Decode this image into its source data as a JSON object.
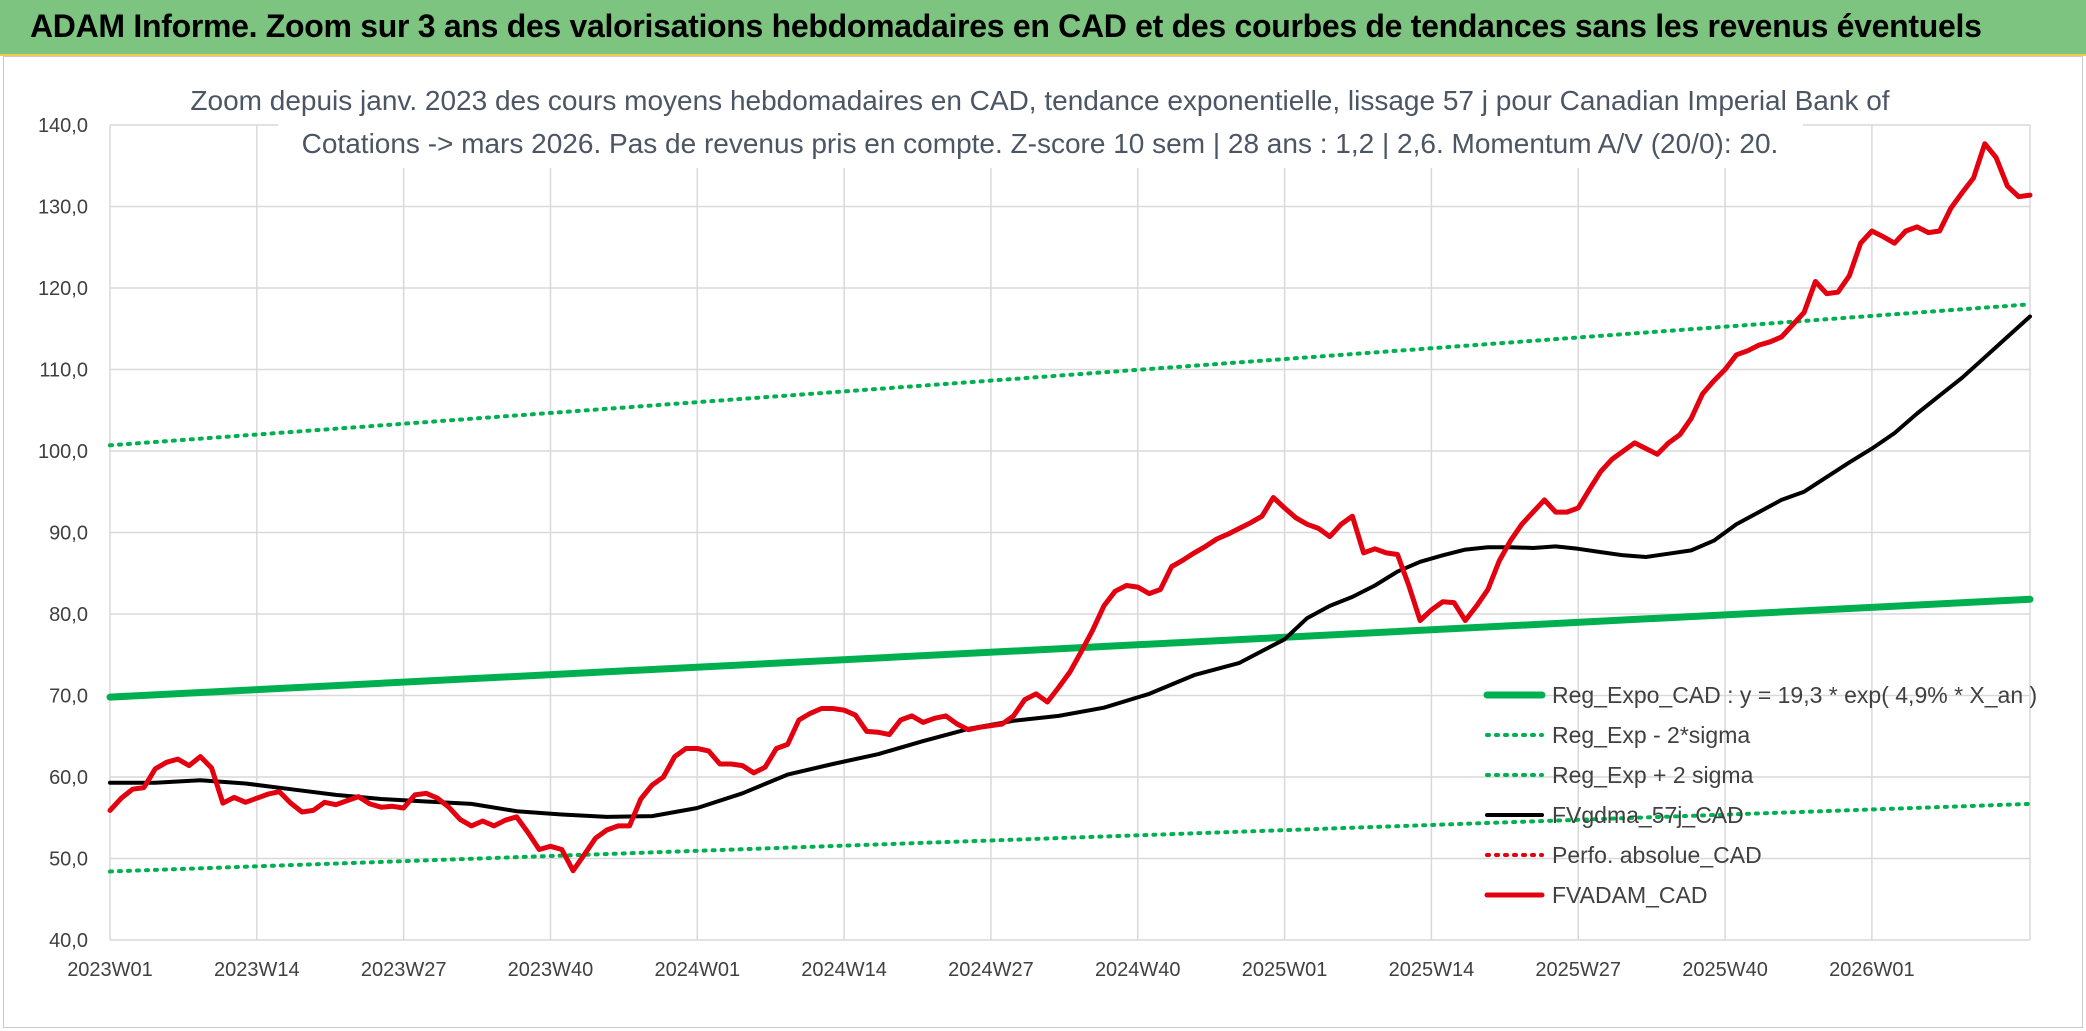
{
  "header": {
    "title": "ADAM Informe. Zoom sur 3 ans des valorisations hebdomadaires en CAD et des courbes de tendances sans les revenus éventuels"
  },
  "colors": {
    "header_bg": "#7cc47f",
    "trend": "#00b050",
    "smooth": "#000000",
    "price": "#e3000f",
    "perf": "#e3000f"
  },
  "chart_data": {
    "type": "line",
    "title_line1": "Zoom depuis janv. 2023 des cours moyens hebdomadaires en CAD, tendance exponentielle, lissage 57 j pour Canadian Imperial Bank of",
    "title_line2": "Cotations -> mars 2026. Pas de revenus pris en compte. Z-score 10 sem | 28 ans : 1,2 | 2,6. Momentum A/V (20/0): 20.",
    "ylim": [
      40,
      140
    ],
    "y_ticks": [
      "40,0",
      "50,0",
      "60,0",
      "70,0",
      "80,0",
      "90,0",
      "100,0",
      "110,0",
      "120,0",
      "130,0",
      "140,0"
    ],
    "x_ticks": [
      {
        "label": "2023W01",
        "week": 0
      },
      {
        "label": "2023W14",
        "week": 13
      },
      {
        "label": "2023W27",
        "week": 26
      },
      {
        "label": "2023W40",
        "week": 39
      },
      {
        "label": "2024W01",
        "week": 52
      },
      {
        "label": "2024W14",
        "week": 65
      },
      {
        "label": "2024W27",
        "week": 78
      },
      {
        "label": "2024W40",
        "week": 91
      },
      {
        "label": "2025W01",
        "week": 104
      },
      {
        "label": "2025W14",
        "week": 117
      },
      {
        "label": "2025W27",
        "week": 130
      },
      {
        "label": "2025W40",
        "week": 143
      },
      {
        "label": "2026W01",
        "week": 156
      }
    ],
    "grid": true,
    "legend_position": "bottom-right",
    "series": [
      {
        "name": "Reg_Expo_CAD : y = 19,3 * exp( 4,9% *  X_an )",
        "style": "solid-thick",
        "color": "#00b050",
        "points": [
          [
            0,
            69.8
          ],
          [
            170,
            81.8
          ]
        ]
      },
      {
        "name": "Reg_Exp - 2*sigma",
        "style": "dotted",
        "color": "#00b050",
        "points": [
          [
            0,
            48.4
          ],
          [
            170,
            56.7
          ]
        ]
      },
      {
        "name": "Reg_Exp + 2 sigma",
        "style": "dotted",
        "color": "#00b050",
        "points": [
          [
            0,
            100.7
          ],
          [
            170,
            118.0
          ]
        ]
      },
      {
        "name": "FVgdma_57j_CAD",
        "style": "solid",
        "color": "#000000",
        "points": [
          [
            0,
            59.3
          ],
          [
            4,
            59.3
          ],
          [
            8,
            59.6
          ],
          [
            12,
            59.2
          ],
          [
            16,
            58.5
          ],
          [
            20,
            57.8
          ],
          [
            24,
            57.3
          ],
          [
            28,
            57.0
          ],
          [
            32,
            56.7
          ],
          [
            36,
            55.8
          ],
          [
            40,
            55.4
          ],
          [
            44,
            55.1
          ],
          [
            48,
            55.2
          ],
          [
            52,
            56.2
          ],
          [
            56,
            58.0
          ],
          [
            60,
            60.3
          ],
          [
            64,
            61.6
          ],
          [
            68,
            62.8
          ],
          [
            72,
            64.4
          ],
          [
            76,
            65.9
          ],
          [
            80,
            66.9
          ],
          [
            84,
            67.5
          ],
          [
            88,
            68.5
          ],
          [
            92,
            70.2
          ],
          [
            96,
            72.5
          ],
          [
            100,
            74.0
          ],
          [
            104,
            76.9
          ],
          [
            106,
            79.5
          ],
          [
            108,
            81.0
          ],
          [
            110,
            82.1
          ],
          [
            112,
            83.5
          ],
          [
            114,
            85.2
          ],
          [
            116,
            86.4
          ],
          [
            118,
            87.2
          ],
          [
            120,
            87.9
          ],
          [
            122,
            88.2
          ],
          [
            124,
            88.2
          ],
          [
            126,
            88.1
          ],
          [
            128,
            88.3
          ],
          [
            130,
            88.0
          ],
          [
            132,
            87.6
          ],
          [
            134,
            87.2
          ],
          [
            136,
            87.0
          ],
          [
            138,
            87.4
          ],
          [
            140,
            87.8
          ],
          [
            142,
            89.0
          ],
          [
            144,
            91.0
          ],
          [
            146,
            92.5
          ],
          [
            148,
            94.0
          ],
          [
            150,
            95.0
          ],
          [
            152,
            96.8
          ],
          [
            154,
            98.6
          ],
          [
            156,
            100.3
          ],
          [
            158,
            102.2
          ],
          [
            160,
            104.6
          ],
          [
            162,
            106.8
          ],
          [
            164,
            109.0
          ],
          [
            166,
            111.5
          ],
          [
            168,
            114.0
          ],
          [
            170,
            116.5
          ]
        ]
      },
      {
        "name": "Perfo. absolue_CAD",
        "style": "dotted",
        "color": "#e3000f",
        "points": []
      },
      {
        "name": "FVADAM_CAD",
        "style": "solid-thick",
        "color": "#e3000f",
        "points": [
          [
            0,
            55.9
          ],
          [
            1,
            57.4
          ],
          [
            2,
            58.5
          ],
          [
            3,
            58.7
          ],
          [
            4,
            61.0
          ],
          [
            5,
            61.8
          ],
          [
            6,
            62.2
          ],
          [
            7,
            61.4
          ],
          [
            8,
            62.5
          ],
          [
            9,
            61.1
          ],
          [
            10,
            56.8
          ],
          [
            11,
            57.5
          ],
          [
            12,
            56.9
          ],
          [
            13,
            57.4
          ],
          [
            14,
            57.9
          ],
          [
            15,
            58.2
          ],
          [
            16,
            56.8
          ],
          [
            17,
            55.7
          ],
          [
            18,
            55.9
          ],
          [
            19,
            56.9
          ],
          [
            20,
            56.6
          ],
          [
            21,
            57.1
          ],
          [
            22,
            57.6
          ],
          [
            23,
            56.7
          ],
          [
            24,
            56.3
          ],
          [
            25,
            56.4
          ],
          [
            26,
            56.2
          ],
          [
            27,
            57.8
          ],
          [
            28,
            58.0
          ],
          [
            29,
            57.4
          ],
          [
            30,
            56.3
          ],
          [
            31,
            54.8
          ],
          [
            32,
            54.0
          ],
          [
            33,
            54.6
          ],
          [
            34,
            54.0
          ],
          [
            35,
            54.7
          ],
          [
            36,
            55.1
          ],
          [
            37,
            53.2
          ],
          [
            38,
            51.1
          ],
          [
            39,
            51.5
          ],
          [
            40,
            51.1
          ],
          [
            41,
            48.5
          ],
          [
            42,
            50.5
          ],
          [
            43,
            52.5
          ],
          [
            44,
            53.5
          ],
          [
            45,
            54.0
          ],
          [
            46,
            54.0
          ],
          [
            47,
            57.3
          ],
          [
            48,
            59.0
          ],
          [
            49,
            60.0
          ],
          [
            50,
            62.5
          ],
          [
            51,
            63.5
          ],
          [
            52,
            63.5
          ],
          [
            53,
            63.2
          ],
          [
            54,
            61.6
          ],
          [
            55,
            61.6
          ],
          [
            56,
            61.4
          ],
          [
            57,
            60.5
          ],
          [
            58,
            61.2
          ],
          [
            59,
            63.5
          ],
          [
            60,
            64.0
          ],
          [
            61,
            67.0
          ],
          [
            62,
            67.8
          ],
          [
            63,
            68.4
          ],
          [
            64,
            68.4
          ],
          [
            65,
            68.2
          ],
          [
            66,
            67.6
          ],
          [
            67,
            65.6
          ],
          [
            68,
            65.5
          ],
          [
            69,
            65.2
          ],
          [
            70,
            67.0
          ],
          [
            71,
            67.5
          ],
          [
            72,
            66.7
          ],
          [
            73,
            67.2
          ],
          [
            74,
            67.5
          ],
          [
            75,
            66.5
          ],
          [
            76,
            65.8
          ],
          [
            77,
            66.1
          ],
          [
            78,
            66.3
          ],
          [
            79,
            66.5
          ],
          [
            80,
            67.5
          ],
          [
            81,
            69.5
          ],
          [
            82,
            70.2
          ],
          [
            83,
            69.2
          ],
          [
            84,
            71.0
          ],
          [
            85,
            72.9
          ],
          [
            86,
            75.4
          ],
          [
            87,
            78.0
          ],
          [
            88,
            81.0
          ],
          [
            89,
            82.8
          ],
          [
            90,
            83.5
          ],
          [
            91,
            83.3
          ],
          [
            92,
            82.5
          ],
          [
            93,
            83.0
          ],
          [
            94,
            85.8
          ],
          [
            95,
            86.6
          ],
          [
            96,
            87.5
          ],
          [
            97,
            88.3
          ],
          [
            98,
            89.2
          ],
          [
            99,
            89.8
          ],
          [
            100,
            90.5
          ],
          [
            101,
            91.2
          ],
          [
            102,
            92.0
          ],
          [
            103,
            94.3
          ],
          [
            104,
            93.0
          ],
          [
            105,
            91.8
          ],
          [
            106,
            91.0
          ],
          [
            107,
            90.5
          ],
          [
            108,
            89.5
          ],
          [
            109,
            91.0
          ],
          [
            110,
            92.0
          ],
          [
            111,
            87.5
          ],
          [
            112,
            88.0
          ],
          [
            113,
            87.5
          ],
          [
            114,
            87.3
          ],
          [
            115,
            83.5
          ],
          [
            116,
            79.2
          ],
          [
            117,
            80.5
          ],
          [
            118,
            81.5
          ],
          [
            119,
            81.4
          ],
          [
            120,
            79.2
          ],
          [
            121,
            81.0
          ],
          [
            122,
            83.0
          ],
          [
            123,
            86.5
          ],
          [
            124,
            89.0
          ],
          [
            125,
            91.0
          ],
          [
            126,
            92.5
          ],
          [
            127,
            94.0
          ],
          [
            128,
            92.5
          ],
          [
            129,
            92.5
          ],
          [
            130,
            93.0
          ],
          [
            131,
            95.3
          ],
          [
            132,
            97.5
          ],
          [
            133,
            99.0
          ],
          [
            134,
            100.0
          ],
          [
            135,
            101.0
          ],
          [
            136,
            100.3
          ],
          [
            137,
            99.6
          ],
          [
            138,
            101.0
          ],
          [
            139,
            102.0
          ],
          [
            140,
            104.0
          ],
          [
            141,
            107.0
          ],
          [
            142,
            108.6
          ],
          [
            143,
            110.0
          ],
          [
            144,
            111.8
          ],
          [
            145,
            112.3
          ],
          [
            146,
            113.0
          ],
          [
            147,
            113.4
          ],
          [
            148,
            114.0
          ],
          [
            149,
            115.5
          ],
          [
            150,
            117.0
          ],
          [
            151,
            120.8
          ],
          [
            152,
            119.3
          ],
          [
            153,
            119.5
          ],
          [
            154,
            121.5
          ],
          [
            155,
            125.5
          ],
          [
            156,
            127.0
          ],
          [
            157,
            126.3
          ],
          [
            158,
            125.5
          ],
          [
            159,
            127.0
          ],
          [
            160,
            127.5
          ],
          [
            161,
            126.8
          ],
          [
            162,
            127.0
          ],
          [
            163,
            129.8
          ],
          [
            164,
            131.7
          ],
          [
            165,
            133.5
          ],
          [
            166,
            137.7
          ],
          [
            167,
            136.0
          ],
          [
            168,
            132.5
          ],
          [
            169,
            131.2
          ],
          [
            170,
            131.4
          ]
        ]
      }
    ]
  }
}
